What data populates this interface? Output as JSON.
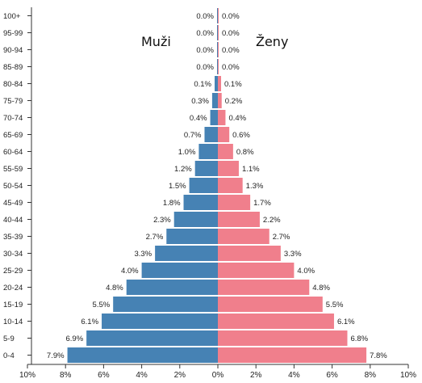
{
  "chart_data": {
    "type": "bar",
    "orientation": "horizontal-butterfly",
    "categories": [
      "0-4",
      "5-9",
      "10-14",
      "15-19",
      "20-24",
      "25-29",
      "30-34",
      "35-39",
      "40-44",
      "45-49",
      "50-54",
      "55-59",
      "60-64",
      "65-69",
      "70-74",
      "75-79",
      "80-84",
      "85-89",
      "90-94",
      "95-99",
      "100+"
    ],
    "series": [
      {
        "name": "Muži",
        "color": "#4682b4",
        "values": [
          7.9,
          6.9,
          6.1,
          5.5,
          4.8,
          4.0,
          3.3,
          2.7,
          2.3,
          1.8,
          1.5,
          1.2,
          1.0,
          0.7,
          0.4,
          0.3,
          0.1,
          0.0,
          0.0,
          0.0,
          0.0
        ],
        "value_labels": [
          "7.9%",
          "6.9%",
          "6.1%",
          "5.5%",
          "4.8%",
          "4.0%",
          "3.3%",
          "2.7%",
          "2.3%",
          "1.8%",
          "1.5%",
          "1.2%",
          "1.0%",
          "0.7%",
          "0.4%",
          "0.3%",
          "0.1%",
          "0.0%",
          "0.0%",
          "0.0%",
          "0.0%"
        ]
      },
      {
        "name": "Ženy",
        "color": "#f07f8c",
        "values": [
          7.8,
          6.8,
          6.1,
          5.5,
          4.8,
          4.0,
          3.3,
          2.7,
          2.2,
          1.7,
          1.3,
          1.1,
          0.8,
          0.6,
          0.4,
          0.2,
          0.1,
          0.0,
          0.0,
          0.0,
          0.0
        ],
        "value_labels": [
          "7.8%",
          "6.8%",
          "6.1%",
          "5.5%",
          "4.8%",
          "4.0%",
          "3.3%",
          "2.7%",
          "2.2%",
          "1.7%",
          "1.3%",
          "1.1%",
          "0.8%",
          "0.6%",
          "0.4%",
          "0.2%",
          "0.1%",
          "0.0%",
          "0.0%",
          "0.0%",
          "0.0%"
        ]
      }
    ],
    "xlim": [
      -10,
      10
    ],
    "x_tick_labels": [
      "10%",
      "8%",
      "6%",
      "4%",
      "2%",
      "0%",
      "2%",
      "4%",
      "6%",
      "8%",
      "10%"
    ],
    "legend": [
      "Muži",
      "Ženy"
    ],
    "grid": false
  }
}
